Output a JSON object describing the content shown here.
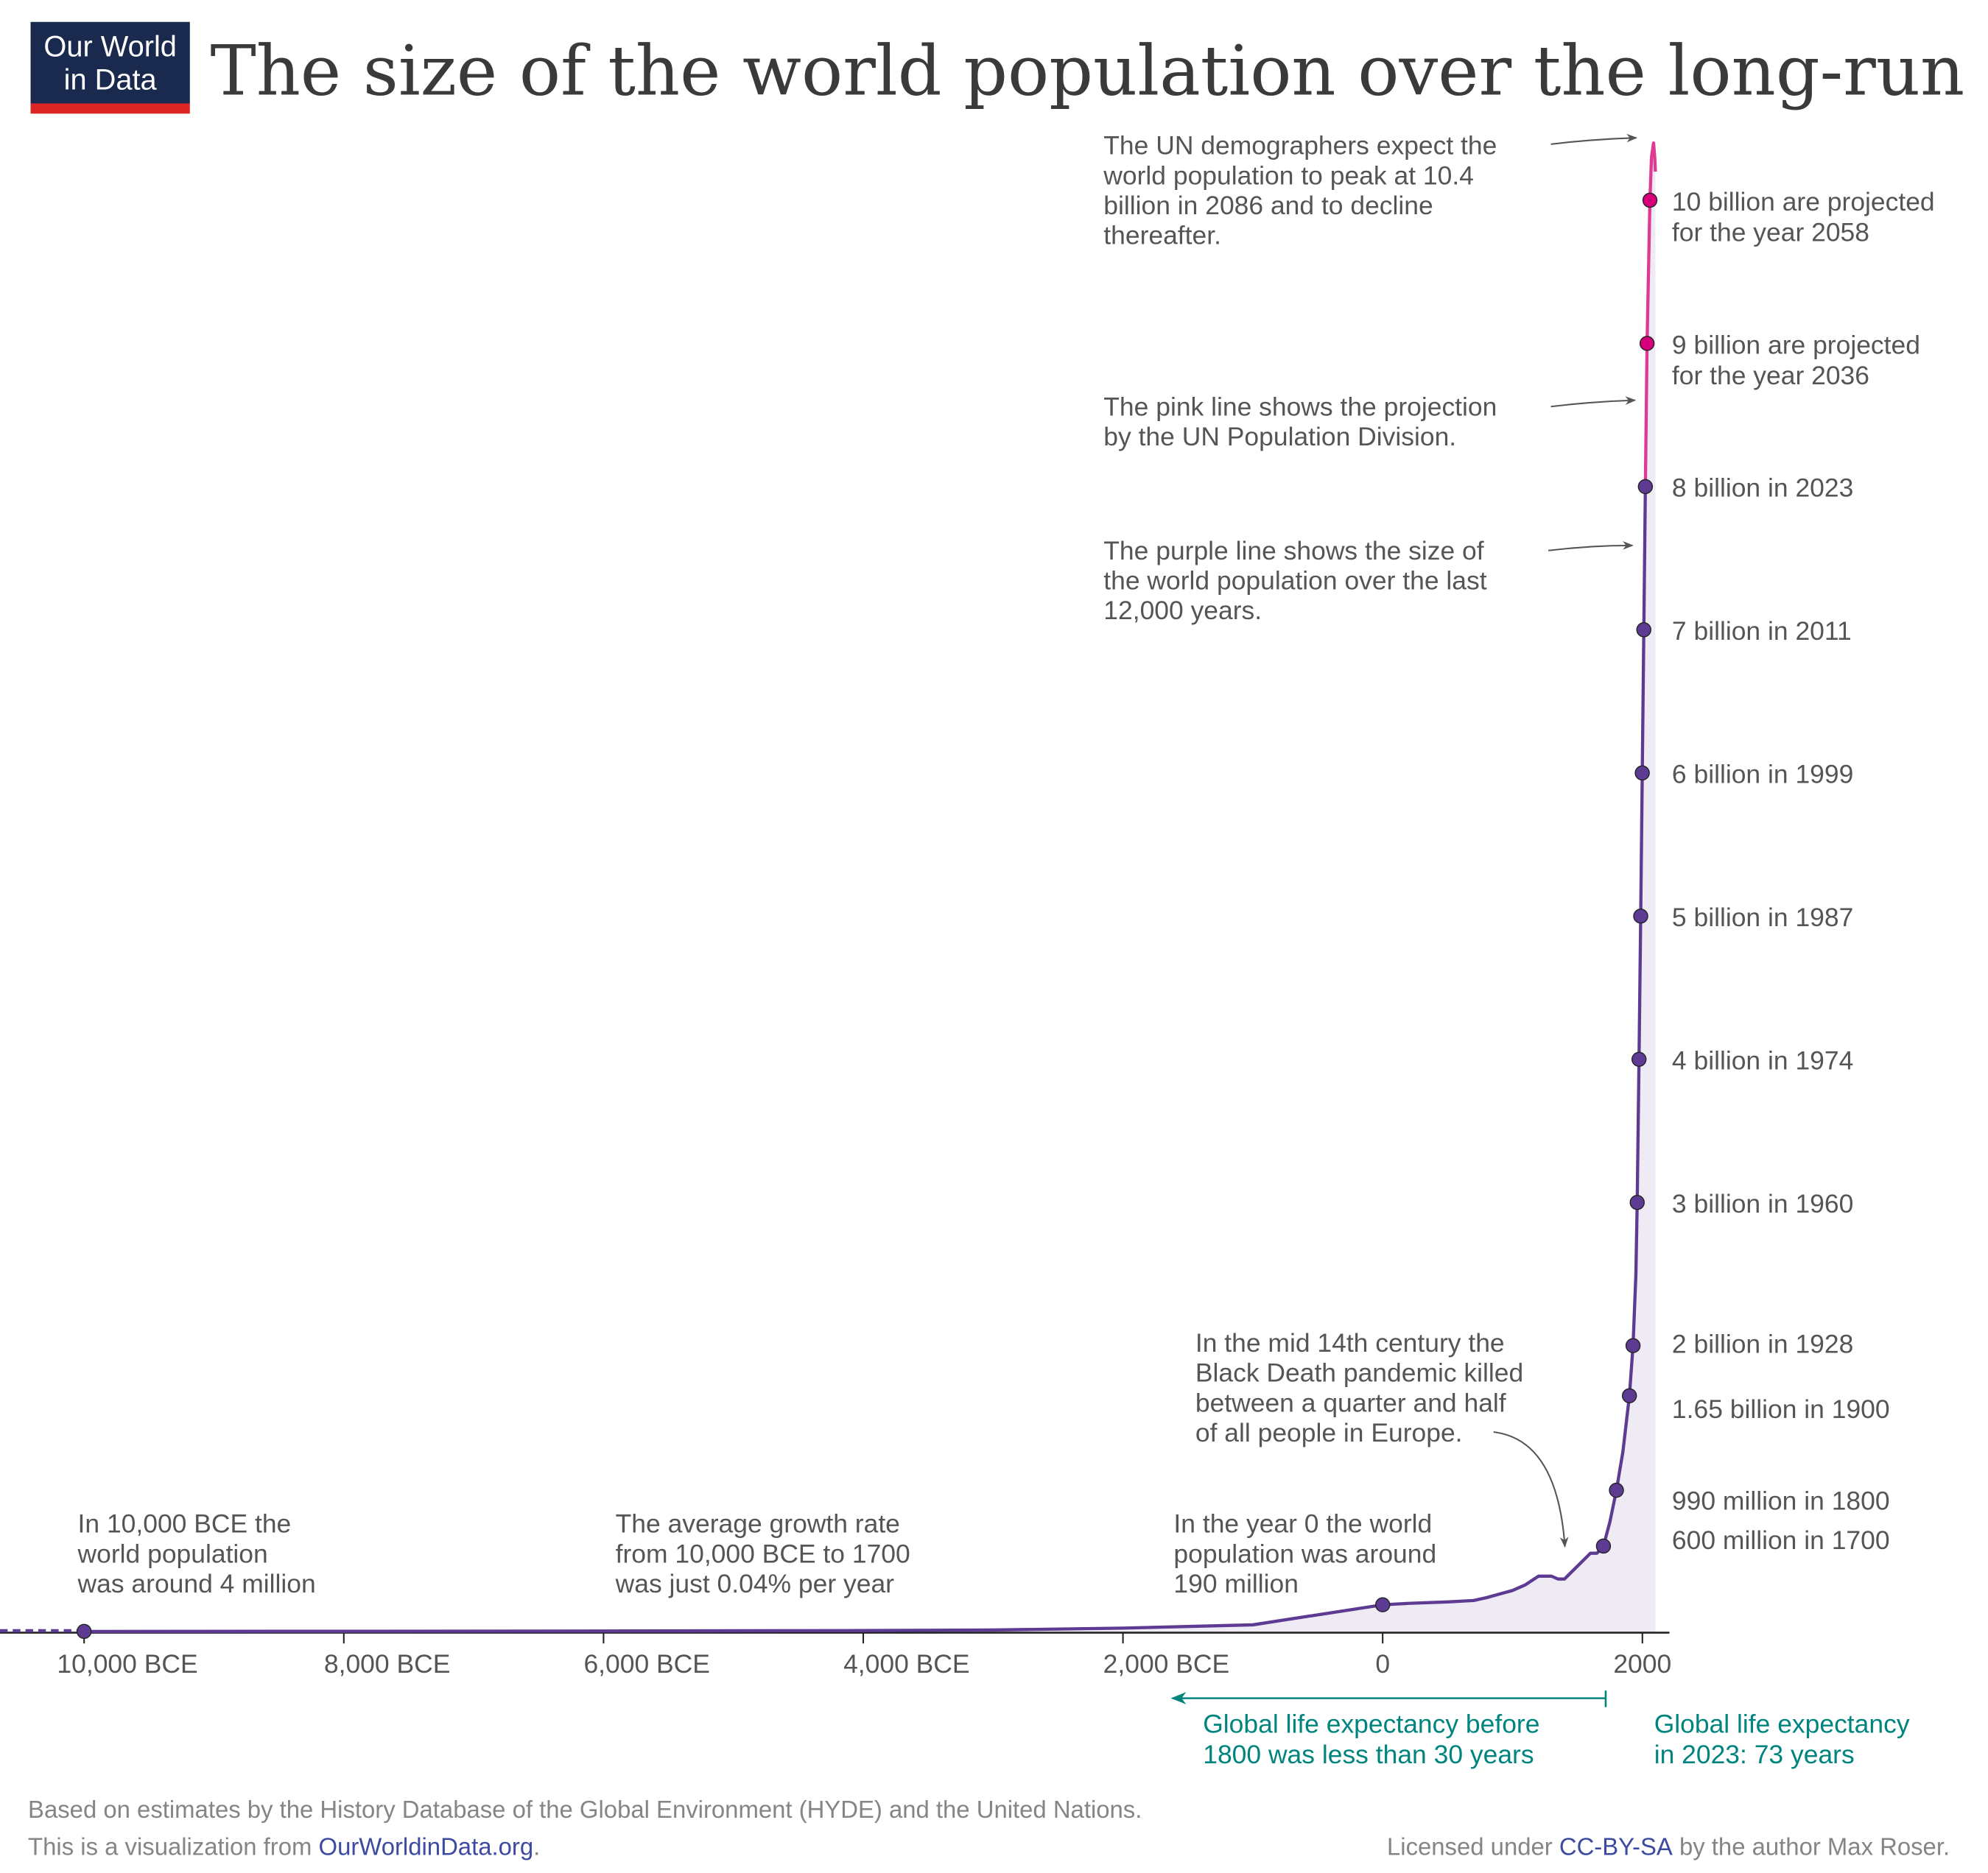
{
  "title": "The size of the world population over the long-run",
  "logo": {
    "line1": "Our World",
    "line2": "in Data",
    "bg": "#1a2a4f",
    "accent": "#dc2626"
  },
  "colors": {
    "historical": "#5d3b93",
    "projection": "#de3a93",
    "projection_dot": "#d6007a",
    "fill": "#efebf5",
    "teal": "#00847e",
    "text": "#555555"
  },
  "chart_data": {
    "type": "area",
    "xlabel": "",
    "ylabel": "",
    "xlim": [
      -10600,
      2100
    ],
    "ylim": [
      0,
      10.4
    ],
    "y_unit": "billion",
    "grid": false,
    "x_ticks": [
      {
        "value": -10000,
        "label": "10,000 BCE"
      },
      {
        "value": -8000,
        "label": "8,000 BCE"
      },
      {
        "value": -6000,
        "label": "6,000 BCE"
      },
      {
        "value": -4000,
        "label": "4,000 BCE"
      },
      {
        "value": -2000,
        "label": "2,000 BCE"
      },
      {
        "value": 0,
        "label": "0"
      },
      {
        "value": 2000,
        "label": "2000"
      }
    ],
    "series": [
      {
        "id": "historical",
        "x": [
          -10000,
          -8000,
          -6000,
          -4000,
          -3000,
          -2000,
          -1000,
          0,
          200,
          500,
          700,
          800,
          1000,
          1100,
          1200,
          1300,
          1350,
          1400,
          1500,
          1600,
          1650,
          1700,
          1750,
          1800,
          1850,
          1900,
          1928,
          1950,
          1960,
          1974,
          1987,
          1999,
          2011,
          2023
        ],
        "y": [
          0.004,
          0.005,
          0.007,
          0.01,
          0.014,
          0.027,
          0.05,
          0.19,
          0.2,
          0.21,
          0.22,
          0.24,
          0.29,
          0.33,
          0.39,
          0.39,
          0.37,
          0.37,
          0.46,
          0.55,
          0.55,
          0.6,
          0.77,
          0.99,
          1.26,
          1.65,
          2.0,
          2.5,
          3.0,
          4.0,
          5.0,
          6.0,
          7.0,
          8.0
        ]
      },
      {
        "id": "projection",
        "x": [
          2023,
          2036,
          2058,
          2070,
          2086,
          2095,
          2100
        ],
        "y": [
          8.0,
          9.0,
          10.0,
          10.3,
          10.4,
          10.3,
          10.2
        ]
      }
    ],
    "labeled_points": [
      {
        "x": -10000,
        "y": 0.004,
        "series": "historical",
        "lines": []
      },
      {
        "x": 0,
        "y": 0.19,
        "series": "historical",
        "lines": []
      },
      {
        "x": 1700,
        "y": 0.6,
        "series": "historical",
        "lines": [
          "600 million in 1700"
        ]
      },
      {
        "x": 1800,
        "y": 0.99,
        "series": "historical",
        "lines": [
          "990 million in 1800"
        ]
      },
      {
        "x": 1900,
        "y": 1.65,
        "series": "historical",
        "lines": [
          "1.65 billion in 1900"
        ]
      },
      {
        "x": 1928,
        "y": 2.0,
        "series": "historical",
        "lines": [
          "2 billion in 1928"
        ]
      },
      {
        "x": 1960,
        "y": 3.0,
        "series": "historical",
        "lines": [
          "3 billion in 1960"
        ]
      },
      {
        "x": 1974,
        "y": 4.0,
        "series": "historical",
        "lines": [
          "4 billion in 1974"
        ]
      },
      {
        "x": 1987,
        "y": 5.0,
        "series": "historical",
        "lines": [
          "5 billion in 1987"
        ]
      },
      {
        "x": 1999,
        "y": 6.0,
        "series": "historical",
        "lines": [
          "6 billion in 1999"
        ]
      },
      {
        "x": 2011,
        "y": 7.0,
        "series": "historical",
        "lines": [
          "7 billion in 2011"
        ]
      },
      {
        "x": 2023,
        "y": 8.0,
        "series": "historical",
        "lines": [
          "8 billion in 2023"
        ]
      },
      {
        "x": 2036,
        "y": 9.0,
        "series": "projection",
        "lines": [
          "9 billion are projected",
          "for the year 2036"
        ]
      },
      {
        "x": 2058,
        "y": 10.0,
        "series": "projection",
        "lines": [
          "10 billion are projected",
          "for the year 2058"
        ]
      }
    ],
    "annotations": [
      {
        "id": "un-peak",
        "lines": [
          "The UN demographers expect the",
          "world population to peak at 10.4",
          "billion in 2086 and to decline",
          "thereafter."
        ]
      },
      {
        "id": "pink-line",
        "lines": [
          "The pink line shows the projection",
          "by the UN Population Division."
        ]
      },
      {
        "id": "purple-line",
        "lines": [
          "The purple line shows the size of",
          "the world population over the last",
          "12,000 years."
        ]
      },
      {
        "id": "black-death",
        "lines": [
          "In the mid 14th century the",
          "Black Death pandemic killed",
          "between a quarter and half",
          "of all people in Europe."
        ]
      },
      {
        "id": "year-zero",
        "lines": [
          "In the year 0 the world",
          "population was around",
          "190 million"
        ]
      },
      {
        "id": "growth-rate",
        "lines": [
          "The average growth rate",
          "from 10,000 BCE to 1700",
          "was just 0.04% per year"
        ]
      },
      {
        "id": "start",
        "lines": [
          "In 10,000 BCE the",
          "world population",
          "was around 4 million"
        ]
      }
    ],
    "life_expectancy": {
      "before": [
        "Global life expectancy before",
        "1800 was less than 30 years"
      ],
      "now": [
        "Global life expectancy",
        "in 2023: 73 years"
      ]
    }
  },
  "footer": {
    "source": "Based on estimates by the History Database of the Global Environment (HYDE) and the United Nations.",
    "viz_prefix": "This is a visualization from ",
    "viz_link": "OurWorldinData.org",
    "viz_suffix": ".",
    "license_prefix": "Licensed under ",
    "license_link": "CC-BY-SA",
    "license_suffix": " by the author Max Roser."
  }
}
